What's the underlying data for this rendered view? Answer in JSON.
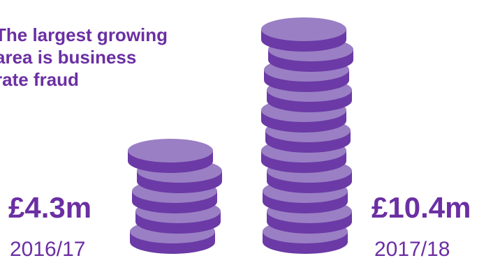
{
  "headline": {
    "line1": "The largest growing",
    "line2": "area is business",
    "line3": "rate fraud"
  },
  "colors": {
    "text": "#6b2fa3",
    "coin_top": "#9a7fc4",
    "coin_side": "#6b3aa6"
  },
  "chart_data": {
    "type": "bar",
    "title": "The largest growing area is business rate fraud",
    "categories": [
      "2016/17",
      "2017/18"
    ],
    "values": [
      4.3,
      10.4
    ],
    "unit": "£m",
    "value_labels": [
      "£4.3m",
      "£10.4m"
    ],
    "coin_counts": [
      5,
      11
    ]
  }
}
